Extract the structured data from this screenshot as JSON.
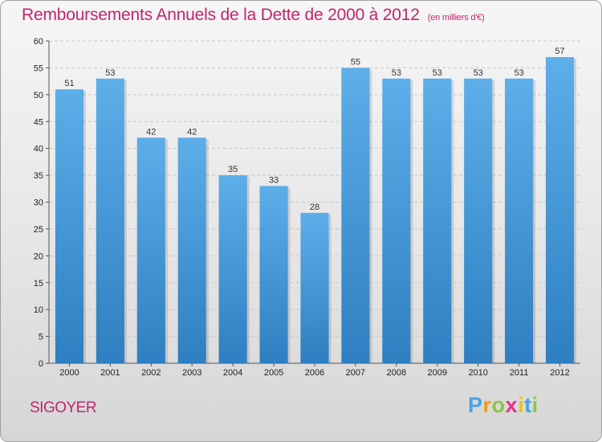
{
  "header": {
    "title": "Remboursements Annuels de la Dette de 2000 à 2012",
    "subtitle": "(en milliers d'€)"
  },
  "footer": {
    "city": "SIGOYER",
    "logo_letters": [
      "P",
      "r",
      "o",
      "x",
      "i",
      "t",
      "i"
    ],
    "logo_colors": [
      "#4aa3df",
      "#f39a1e",
      "#8dc63f",
      "#e8308c",
      "#f5c400",
      "#4aa3df",
      "#8dc63f"
    ]
  },
  "chart_data": {
    "type": "bar",
    "title": "Remboursements Annuels de la Dette de 2000 à 2012",
    "subtitle": "(en milliers d'€)",
    "categories": [
      "2000",
      "2001",
      "2002",
      "2003",
      "2004",
      "2005",
      "2006",
      "2007",
      "2008",
      "2009",
      "2010",
      "2011",
      "2012"
    ],
    "values": [
      51,
      53,
      42,
      42,
      35,
      33,
      28,
      55,
      53,
      53,
      53,
      53,
      57
    ],
    "ylim": [
      0,
      60
    ],
    "yticks": [
      0,
      5,
      10,
      15,
      20,
      25,
      30,
      35,
      40,
      45,
      50,
      55,
      60
    ],
    "grid": true,
    "bar_color_top": "#5daee9",
    "bar_color_bottom": "#2e7fc1"
  }
}
